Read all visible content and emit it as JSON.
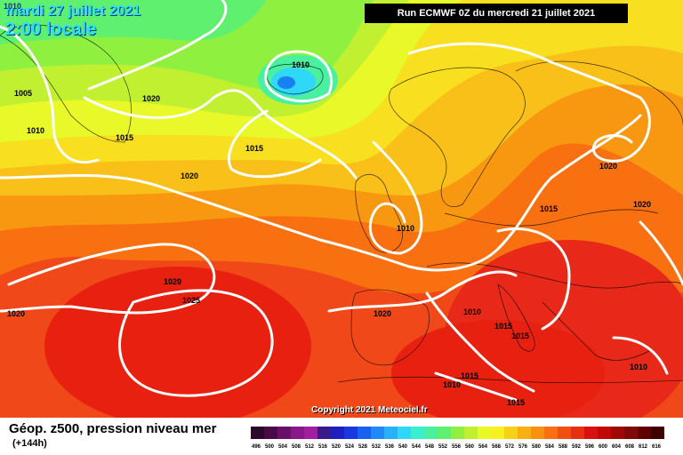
{
  "header": {
    "date": "mardi 27 juillet 2021",
    "time": "2:00 locale",
    "run": "Run ECMWF 0Z du mercredi 21 juillet 2021"
  },
  "copyright": "Copyright 2021 Meteociel.fr",
  "legend": {
    "title": "Géop. z500, pression niveau mer",
    "subtitle": "(+144h)",
    "scale_labels": [
      "496",
      "500",
      "504",
      "508",
      "512",
      "516",
      "520",
      "524",
      "528",
      "532",
      "536",
      "540",
      "544",
      "548",
      "552",
      "556",
      "560",
      "564",
      "568",
      "572",
      "576",
      "580",
      "584",
      "588",
      "592",
      "596",
      "600",
      "604",
      "608",
      "612",
      "616"
    ],
    "scale_colors": [
      "#2a0a2a",
      "#4a0a4a",
      "#6a106a",
      "#8a188a",
      "#a020a0",
      "#3a1a8a",
      "#2020c0",
      "#1838e0",
      "#1860f0",
      "#2088f8",
      "#28b0f8",
      "#30d8f8",
      "#38f0d0",
      "#48f0a0",
      "#60f070",
      "#90f040",
      "#c0f030",
      "#e8f828",
      "#f8f020",
      "#f8d018",
      "#f8b010",
      "#f89010",
      "#f87010",
      "#f05010",
      "#e83010",
      "#d81010",
      "#c00808",
      "#a00808",
      "#800808",
      "#600000",
      "#400000"
    ]
  },
  "isobars": [
    {
      "label": "1010",
      "at": "top-left"
    },
    {
      "label": "1005",
      "at": "greenland-west"
    },
    {
      "label": "1010",
      "at": "greenland-south"
    },
    {
      "label": "1020",
      "at": "labrador-sea"
    },
    {
      "label": "1015",
      "at": "greenland-south-east"
    },
    {
      "label": "1010",
      "at": "iceland-low"
    },
    {
      "label": "1015",
      "at": "south-of-iceland"
    },
    {
      "label": "1020",
      "at": "mid-atlantic"
    },
    {
      "label": "1010",
      "at": "north-sea"
    },
    {
      "label": "1020",
      "at": "azores-north"
    },
    {
      "label": "1025",
      "at": "azores-high"
    },
    {
      "label": "1020",
      "at": "south-west"
    },
    {
      "label": "1020",
      "at": "iberia"
    },
    {
      "label": "1010",
      "at": "italy"
    },
    {
      "label": "1015",
      "at": "mediterranean-west"
    },
    {
      "label": "1015",
      "at": "mediterranean-east"
    },
    {
      "label": "1015",
      "at": "poland"
    },
    {
      "label": "1020",
      "at": "russia"
    },
    {
      "label": "1020",
      "at": "finland"
    },
    {
      "label": "1015",
      "at": "north-africa"
    },
    {
      "label": "1010",
      "at": "sahara"
    },
    {
      "label": "1015",
      "at": "libya"
    },
    {
      "label": "1010",
      "at": "turkey"
    }
  ],
  "colors": {
    "ocean_low": "#33e0ff",
    "high": "#e82010"
  }
}
